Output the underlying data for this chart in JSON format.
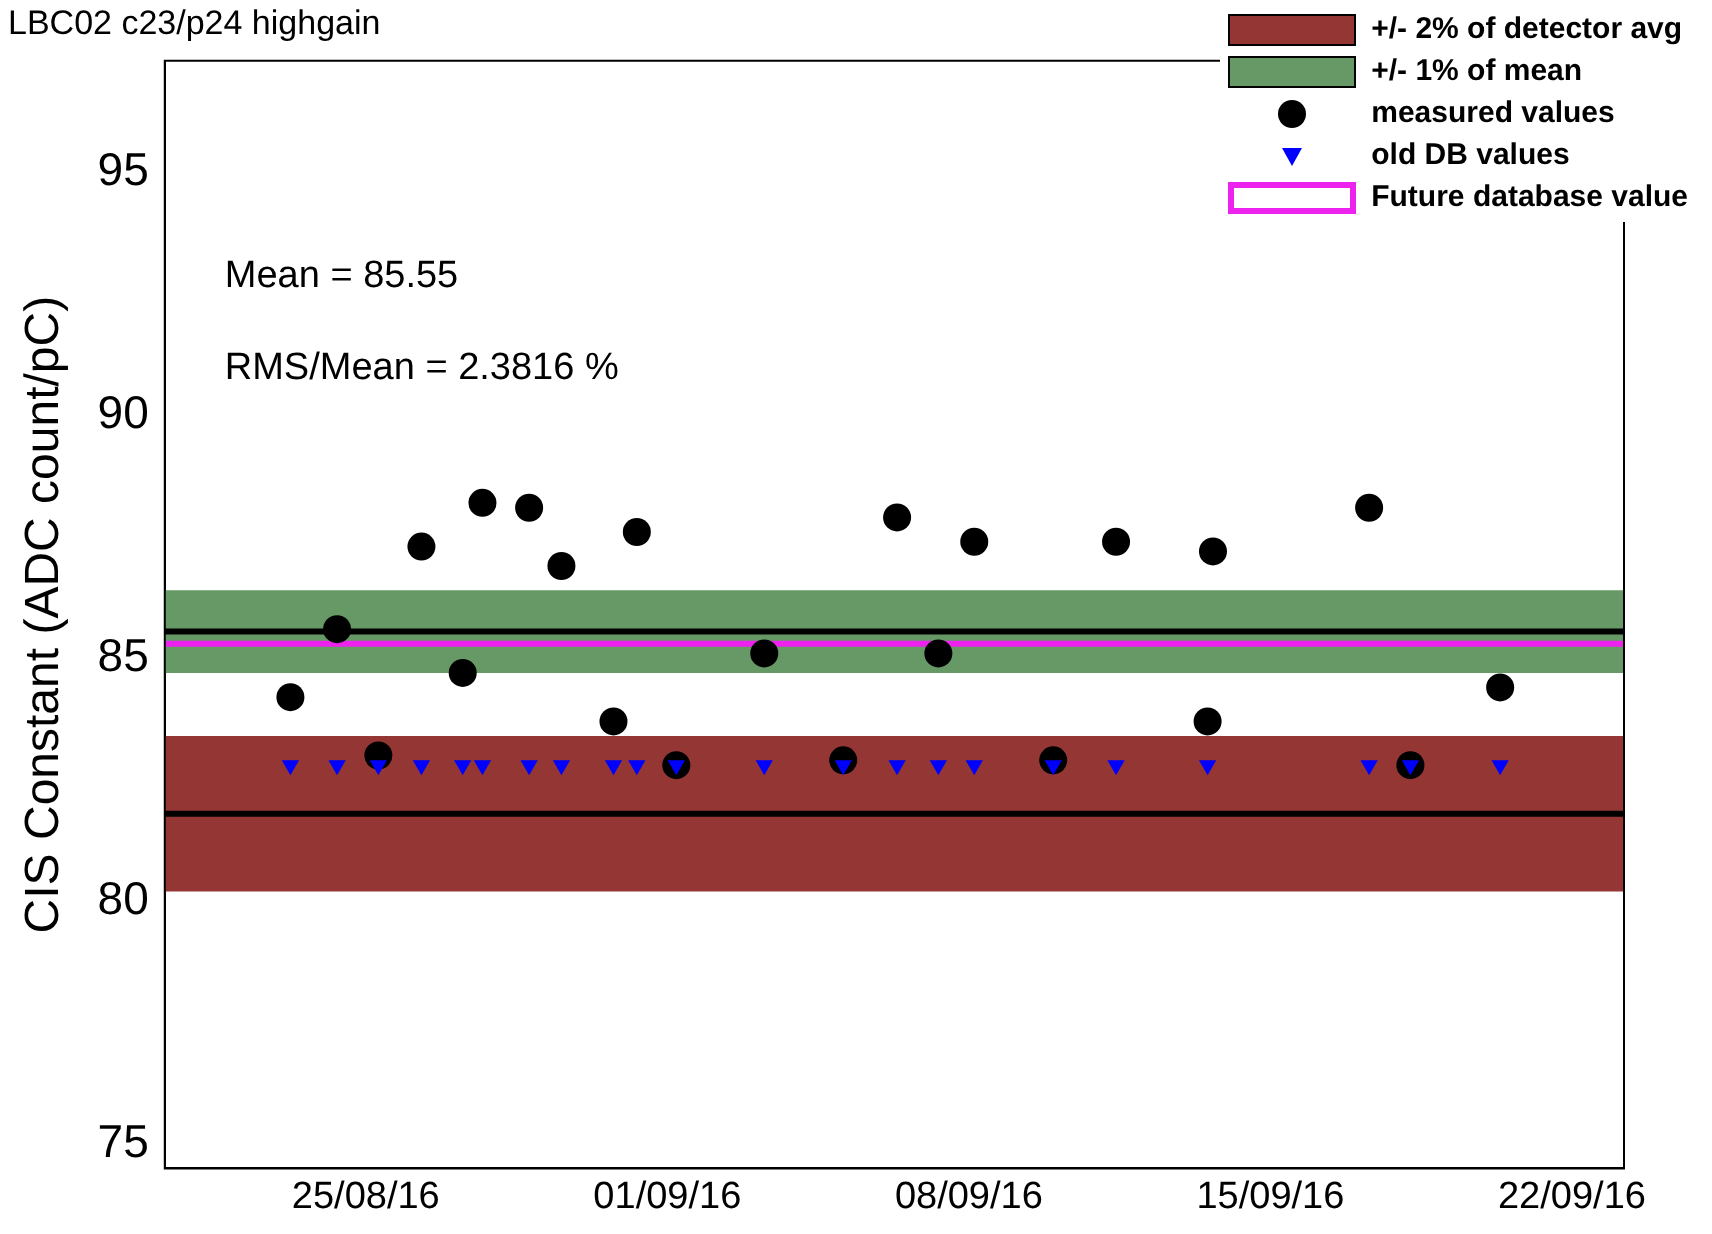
{
  "chart_data": {
    "type": "scatter",
    "title": "LBC02 c23/p24 highgain",
    "ylabel": "CIS Constant (ADC count/pC)",
    "xlim": [
      "--08-20T08:00",
      "--09-23T05:00"
    ],
    "xticks": [
      {
        "value": "--08-25",
        "label": "25/08/16"
      },
      {
        "value": "--09-01",
        "label": "01/09/16"
      },
      {
        "value": "--09-08",
        "label": "08/09/16"
      },
      {
        "value": "--09-15",
        "label": "15/09/16"
      },
      {
        "value": "--09-22",
        "label": "22/09/16"
      }
    ],
    "ylim": [
      74.5,
      97.3
    ],
    "yticks": [
      75,
      80,
      85,
      90,
      95
    ],
    "grid": false,
    "legend": "top right",
    "series": [
      {
        "name": "measured values",
        "color": "#000000",
        "marker": "circle",
        "x": [
          "--08-23T06:00",
          "--08-24T08:00",
          "--08-25T07:00",
          "--08-26T07:00",
          "--08-27T06:00",
          "--08-27T17:00",
          "--08-28T19:00",
          "--08-29T13:00",
          "--08-30T18:00",
          "--08-31T07:00",
          "--09-01T05:00",
          "--09-03T06:00",
          "--09-05T02:00",
          "--09-06T08:00",
          "--09-07T07:00",
          "--09-08T03:00",
          "--09-09T23:00",
          "--09-11T10:00",
          "--09-13T13:00",
          "--09-13T16:00",
          "--09-17T07:00",
          "--09-18T06:00",
          "--09-20T08:00"
        ],
        "values": [
          84.2,
          85.6,
          83.0,
          87.3,
          84.7,
          88.2,
          88.1,
          86.9,
          83.7,
          87.6,
          82.8,
          85.1,
          82.9,
          87.9,
          85.1,
          87.4,
          82.9,
          87.4,
          83.7,
          87.2,
          88.1,
          82.8,
          84.4
        ]
      },
      {
        "name": "old DB values",
        "color": "#0000ff",
        "marker": "triangle",
        "x": [
          "--08-23T06:00",
          "--08-24T08:00",
          "--08-25T07:00",
          "--08-26T07:00",
          "--08-27T06:00",
          "--08-27T17:00",
          "--08-28T19:00",
          "--08-29T13:00",
          "--08-30T18:00",
          "--08-31T07:00",
          "--09-01T05:00",
          "--09-03T06:00",
          "--09-05T02:00",
          "--09-06T08:00",
          "--09-07T07:00",
          "--09-08T03:00",
          "--09-09T23:00",
          "--09-11T10:00",
          "--09-13T13:00",
          "--09-17T07:00",
          "--09-18T06:00",
          "--09-20T08:00"
        ],
        "values": [
          82.8,
          82.8,
          82.8,
          82.8,
          82.8,
          82.8,
          82.8,
          82.8,
          82.8,
          82.8,
          82.8,
          82.8,
          82.8,
          82.8,
          82.8,
          82.8,
          82.8,
          82.8,
          82.8,
          82.8,
          82.8,
          82.8
        ]
      }
    ],
    "bands": [
      {
        "axis": "y",
        "from": 80.2,
        "to": 83.4,
        "label": "+/- 2% of detector avg",
        "color": "#943634"
      },
      {
        "axis": "y",
        "from": 84.7,
        "to": 86.4,
        "label": "+/- 1% of mean",
        "color": "#669966"
      }
    ],
    "ref_lines": [
      {
        "axis": "y",
        "value": 81.8,
        "color": "#000000"
      },
      {
        "axis": "y",
        "value": 85.55,
        "color": "#000000"
      },
      {
        "axis": "y",
        "value": 85.3,
        "label": "Future database value",
        "color": "#ee22ee"
      }
    ],
    "annotations": [
      "Mean = 85.55",
      "RMS/Mean = 2.3816 %"
    ]
  }
}
